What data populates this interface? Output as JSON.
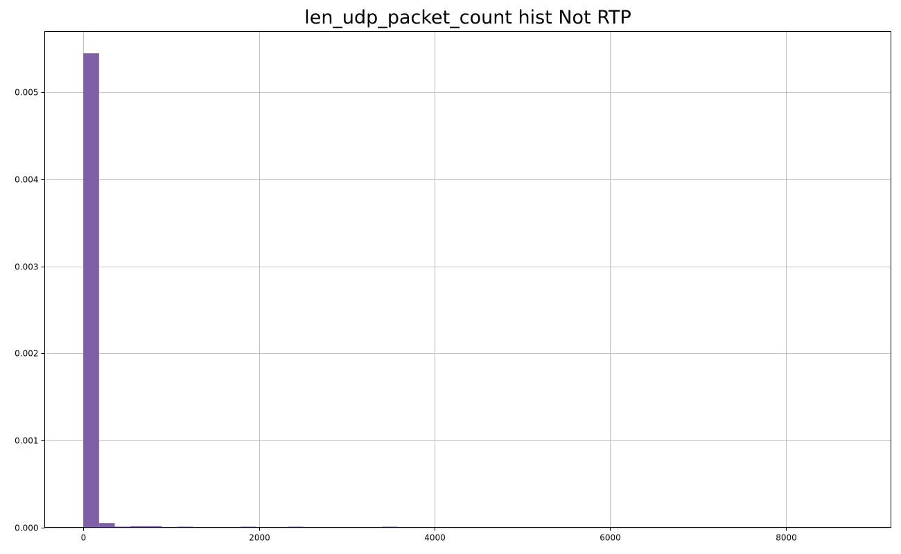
{
  "chart_data": {
    "type": "bar",
    "title": "len_udp_packet_count hist Not RTP",
    "xlabel": "",
    "ylabel": "",
    "xlim": [
      -440,
      9200
    ],
    "ylim": [
      0,
      0.0057
    ],
    "grid": true,
    "bar_color": "#7f5fa8",
    "xticks": [
      0,
      2000,
      4000,
      6000,
      8000
    ],
    "xtick_labels": [
      "0",
      "2000",
      "4000",
      "6000",
      "8000"
    ],
    "yticks": [
      0,
      0.001,
      0.002,
      0.003,
      0.004,
      0.005
    ],
    "ytick_labels": [
      "0.000",
      "0.001",
      "0.002",
      "0.003",
      "0.004",
      "0.005"
    ],
    "bin_width": 179,
    "bins": [
      {
        "x0": 0,
        "value": 0.00545
      },
      {
        "x0": 179,
        "value": 5e-05
      },
      {
        "x0": 358,
        "value": 8e-06
      },
      {
        "x0": 537,
        "value": 1.3e-05
      },
      {
        "x0": 716,
        "value": 1.3e-05
      },
      {
        "x0": 1074,
        "value": 4e-06
      },
      {
        "x0": 1790,
        "value": 4e-06
      },
      {
        "x0": 2327,
        "value": 4e-06
      },
      {
        "x0": 3401,
        "value": 4e-06
      }
    ]
  }
}
